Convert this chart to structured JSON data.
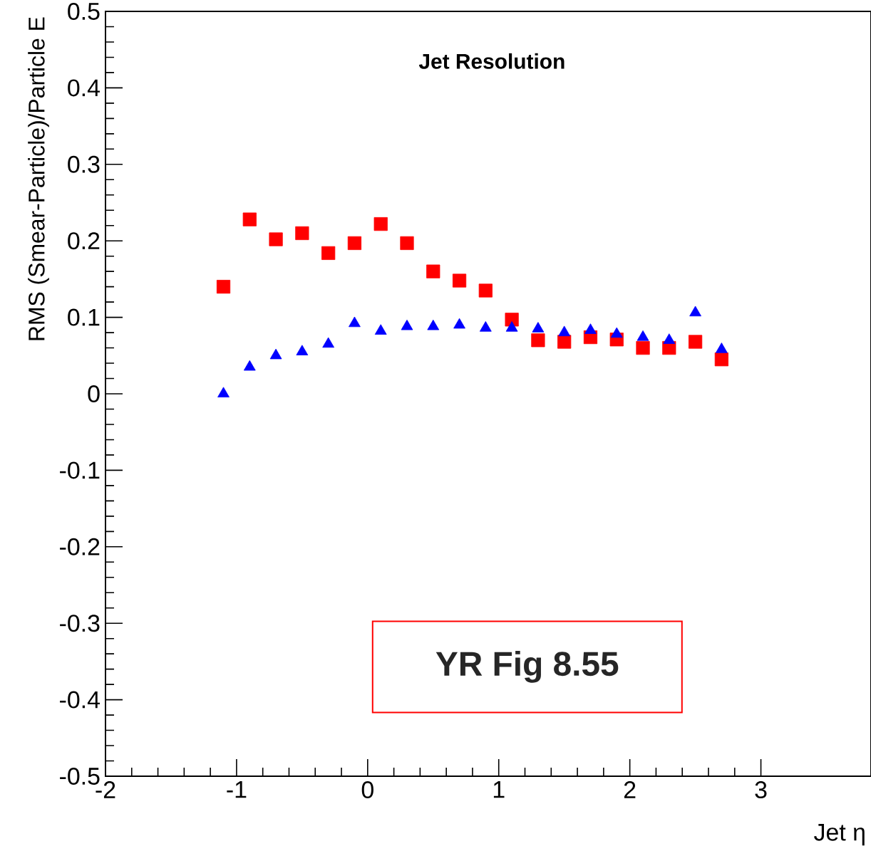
{
  "chart_data": {
    "type": "scatter",
    "title": "Jet Resolution",
    "xlabel": "Jet η",
    "ylabel": "RMS (Smear-Particle)/Particle E",
    "annotations": [
      "YR Fig 8.55"
    ],
    "x": [
      -1.1,
      -0.9,
      -0.7,
      -0.5,
      -0.3,
      -0.1,
      0.1,
      0.3,
      0.5,
      0.7,
      0.9,
      1.1,
      1.3,
      1.5,
      1.7,
      1.9,
      2.1,
      2.3,
      2.5,
      2.7
    ],
    "series": [
      {
        "color": "#ff0000",
        "marker": "square",
        "values": [
          0.14,
          0.228,
          0.202,
          0.21,
          0.184,
          0.197,
          0.222,
          0.197,
          0.16,
          0.148,
          0.135,
          0.097,
          0.07,
          0.068,
          0.074,
          0.071,
          0.06,
          0.06,
          0.068,
          0.045
        ]
      },
      {
        "color": "#0000ff",
        "marker": "triangle",
        "values": [
          0.0,
          0.035,
          0.05,
          0.055,
          0.065,
          0.092,
          0.082,
          0.088,
          0.088,
          0.09,
          0.086,
          0.086,
          0.085,
          0.08,
          0.083,
          0.078,
          0.074,
          0.07,
          0.106,
          0.058
        ]
      }
    ],
    "xlim": [
      -2,
      3.84
    ],
    "ylim": [
      -0.5,
      0.5
    ],
    "xticks": [
      -2,
      -1,
      0,
      1,
      2,
      3
    ],
    "yticks": [
      -0.5,
      -0.4,
      -0.3,
      -0.2,
      -0.1,
      0,
      0.1,
      0.2,
      0.3,
      0.4,
      0.5
    ],
    "grid": false
  }
}
